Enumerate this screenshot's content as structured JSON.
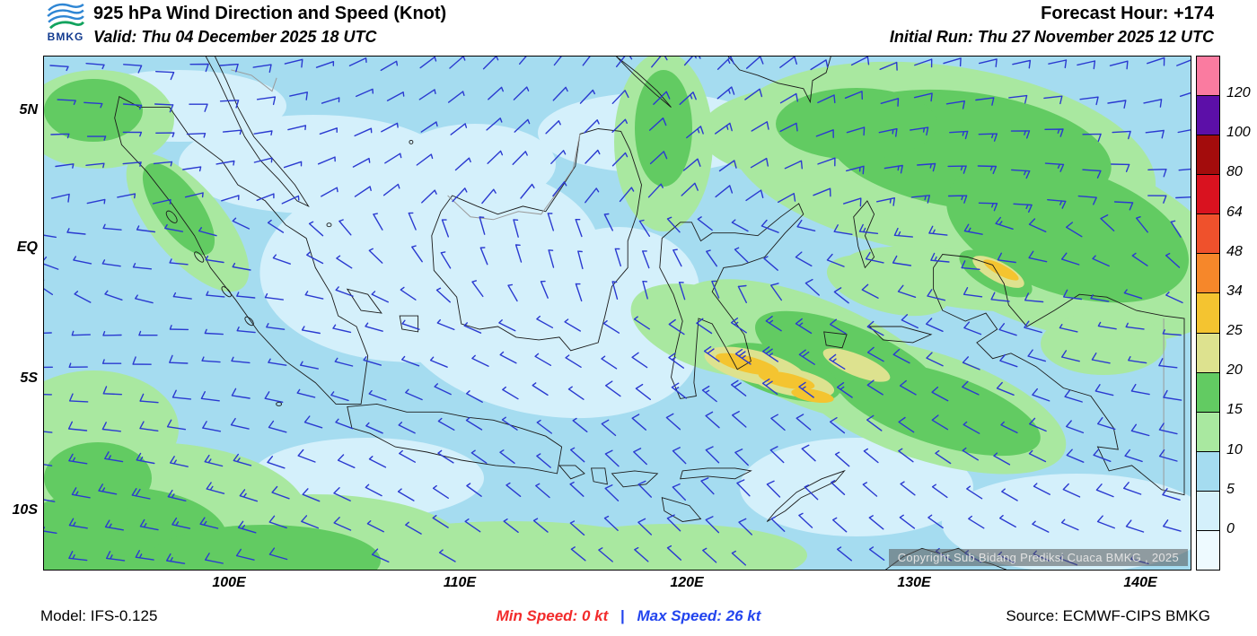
{
  "header": {
    "logo_text": "BMKG",
    "title": "925 hPa Wind Direction and Speed (Knot)",
    "valid": "Valid: Thu 04 December 2025 18 UTC",
    "forecast_hour": "Forecast Hour: +174",
    "initial_run": "Initial Run: Thu 27 November 2025 12 UTC"
  },
  "map": {
    "lat_ticks": [
      "5N",
      "EQ",
      "5S",
      "10S"
    ],
    "lon_ticks": [
      "100E",
      "110E",
      "120E",
      "130E",
      "140E"
    ],
    "copyright": "Copyright Sub Bidang Prediksi Cuaca BMKG , 2025",
    "barb_color": "#2a3ad0",
    "ocean_base_color": "#a5dcf0"
  },
  "legend": {
    "levels": [
      0,
      5,
      10,
      15,
      20,
      25,
      34,
      48,
      64,
      80,
      100,
      120
    ],
    "colors_low_to_high": [
      "#eefaff",
      "#d4f0fb",
      "#a5dcf0",
      "#a9e8a0",
      "#62cb62",
      "#dde28f",
      "#f4c430",
      "#f6872a",
      "#ef512c",
      "#d9121f",
      "#a30c0c",
      "#5c0fa8",
      "#fa7ba0"
    ]
  },
  "footer": {
    "model": "Model: IFS-0.125",
    "min_speed": "Min Speed:  0 kt",
    "separator": "|",
    "max_speed": "Max Speed:  26 kt",
    "source": "Source: ECMWF-CIPS BMKG",
    "min_color": "#f22b2b",
    "max_color": "#2244ee"
  },
  "chart_data": {
    "type": "heatmap",
    "title": "925 hPa Wind Direction and Speed (Knot)",
    "valid": "Thu 04 December 2025 18 UTC",
    "initial_run": "Thu 27 November 2025 12 UTC",
    "forecast_hour": "+174",
    "level": "925 hPa",
    "units": "knot",
    "model": "IFS-0.125",
    "source": "ECMWF-CIPS BMKG",
    "x_tick_labels": [
      "100E",
      "110E",
      "120E",
      "130E",
      "140E"
    ],
    "y_tick_labels": [
      "5N",
      "EQ",
      "5S",
      "10S"
    ],
    "xlim_deg_east": [
      92,
      142
    ],
    "ylim_deg_north": [
      -12,
      7
    ],
    "grid": false,
    "legend_position": "right-vertical-colorbar",
    "colorbar_levels": [
      0,
      5,
      10,
      15,
      20,
      25,
      34,
      48,
      64,
      80,
      100,
      120
    ],
    "colorbar_colors_low_to_high": [
      "#eefaff",
      "#d4f0fb",
      "#a5dcf0",
      "#a9e8a0",
      "#62cb62",
      "#dde28f",
      "#f4c430",
      "#f6872a",
      "#ef512c",
      "#d9121f",
      "#a30c0c",
      "#5c0fa8",
      "#fa7ba0"
    ],
    "min_speed_kt": 0,
    "max_speed_kt": 26,
    "speed_field_estimate_kt": {
      "lon_deg": [
        92,
        97,
        102,
        107,
        112,
        117,
        122,
        127,
        132,
        137,
        142
      ],
      "lat_deg": [
        6,
        3,
        0,
        -3,
        -6,
        -9,
        -12
      ],
      "values": [
        [
          8,
          6,
          5,
          6,
          7,
          8,
          12,
          15,
          14,
          10,
          8
        ],
        [
          8,
          5,
          4,
          5,
          7,
          9,
          12,
          16,
          17,
          13,
          8
        ],
        [
          8,
          5,
          3,
          4,
          5,
          8,
          12,
          15,
          18,
          14,
          8
        ],
        [
          9,
          8,
          5,
          4,
          5,
          8,
          15,
          17,
          14,
          10,
          7
        ],
        [
          12,
          14,
          8,
          5,
          5,
          9,
          25,
          17,
          10,
          7,
          6
        ],
        [
          14,
          17,
          12,
          8,
          7,
          8,
          10,
          8,
          7,
          6,
          5
        ],
        [
          16,
          18,
          14,
          10,
          8,
          10,
          12,
          9,
          7,
          5,
          5
        ]
      ]
    },
    "flow_summary": "Blue wind barbs show easterly to northeasterly flow north of the equator and westerly to northwesterly flow south of the equator; strongest shaded speeds (25-26 kt, gold) appear south of Sulawesi and near northern Maluku"
  }
}
